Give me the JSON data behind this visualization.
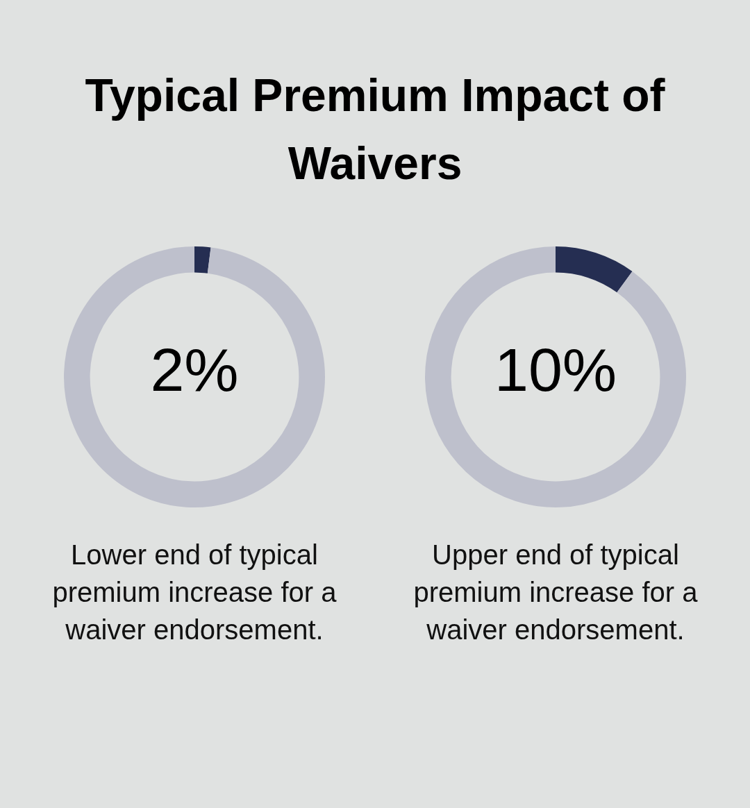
{
  "chart_data": [
    {
      "type": "donut",
      "title": "Typical Premium Impact of Waivers",
      "categories": [
        null,
        null
      ],
      "values": [
        2,
        98
      ],
      "colors": [
        "#252e52",
        "#bec0cc"
      ],
      "value_labels": [
        "2%",
        null
      ],
      "annotations": [
        "Lower end of typical premium increase for a waiver endorsement."
      ]
    },
    {
      "type": "donut",
      "categories": [
        null,
        null
      ],
      "values": [
        10,
        90
      ],
      "colors": [
        "#252e52",
        "#bec0cc"
      ],
      "value_labels": [
        "10%",
        null
      ],
      "annotations": [
        "Upper end of typical premium increase for a waiver endorsement."
      ]
    }
  ]
}
